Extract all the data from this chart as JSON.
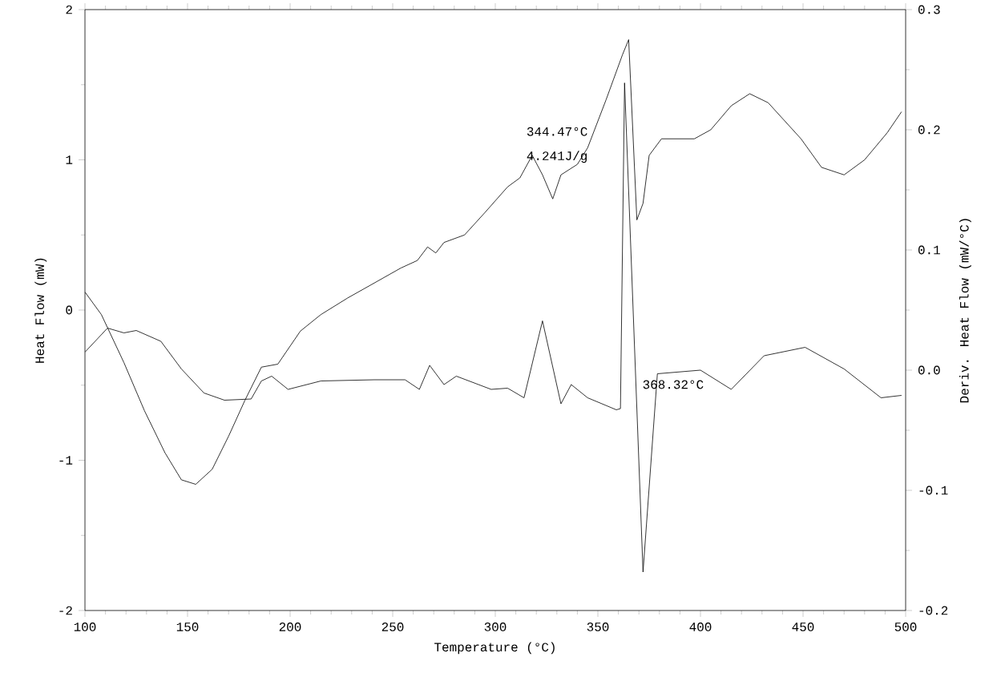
{
  "chart_data": {
    "type": "line",
    "xlabel": "Temperature (°C)",
    "ylabel": "Heat Flow (mW)",
    "y2label": "Deriv. Heat Flow (mW/°C)",
    "xlim": [
      100,
      500
    ],
    "xticks": [
      100,
      150,
      200,
      250,
      300,
      350,
      400,
      450,
      500
    ],
    "ylim": [
      -2,
      2
    ],
    "yticks": [
      -2,
      -1,
      0,
      1,
      2
    ],
    "y2lim": [
      -0.2,
      0.3
    ],
    "y2ticks": [
      -0.2,
      -0.1,
      {
        "value": 0,
        "label": "0.0"
      },
      0.1,
      0.2,
      0.3
    ],
    "grid": false,
    "marker": "none",
    "line_style": "solid",
    "series": [
      {
        "color": "#000000",
        "x": [
          100,
          108,
          119,
          129,
          139,
          147,
          154,
          162,
          170,
          178,
          186,
          194,
          205,
          215,
          228,
          241,
          254,
          262,
          267,
          271,
          275,
          285,
          295,
          306,
          312,
          318,
          323,
          328,
          332,
          340,
          345,
          354,
          362,
          365,
          369,
          372,
          375,
          381,
          397,
          405,
          415,
          424,
          433,
          449,
          459,
          470,
          480,
          491,
          498
        ],
        "values": [
          0.12,
          -0.03,
          -0.35,
          -0.67,
          -0.95,
          -1.13,
          -1.16,
          -1.06,
          -0.84,
          -0.6,
          -0.38,
          -0.36,
          -0.14,
          -0.03,
          0.08,
          0.18,
          0.28,
          0.33,
          0.42,
          0.38,
          0.45,
          0.5,
          0.65,
          0.82,
          0.88,
          1.03,
          0.9,
          0.74,
          0.9,
          0.97,
          1.08,
          1.4,
          1.7,
          1.8,
          0.6,
          0.71,
          1.03,
          1.14,
          1.14,
          1.2,
          1.36,
          1.44,
          1.38,
          1.14,
          0.95,
          0.9,
          1.0,
          1.18,
          1.32
        ]
      },
      {
        "color": "#000000",
        "axis": "y2",
        "x": [
          100,
          111,
          119,
          125,
          137,
          147,
          158,
          168,
          181,
          186,
          191,
          199,
          215,
          241,
          256,
          263,
          268,
          275,
          281,
          298,
          306,
          314,
          323,
          332,
          337,
          345,
          359,
          361,
          363,
          372,
          379,
          400,
          415,
          431,
          451,
          470,
          488,
          498
        ],
        "values": [
          0.015,
          0.035,
          0.031,
          0.033,
          0.024,
          0.001,
          -0.019,
          -0.025,
          -0.024,
          -0.009,
          -0.005,
          -0.016,
          -0.009,
          -0.008,
          -0.008,
          -0.016,
          0.004,
          -0.012,
          -0.005,
          -0.016,
          -0.015,
          -0.023,
          0.041,
          -0.028,
          -0.012,
          -0.023,
          -0.033,
          -0.032,
          0.239,
          -0.168,
          -0.003,
          0.0,
          -0.016,
          0.012,
          0.019,
          0.001,
          -0.023,
          -0.021
        ]
      }
    ],
    "annotations": [
      "344.47°C",
      "4.241J/g",
      "368.32°C"
    ]
  }
}
